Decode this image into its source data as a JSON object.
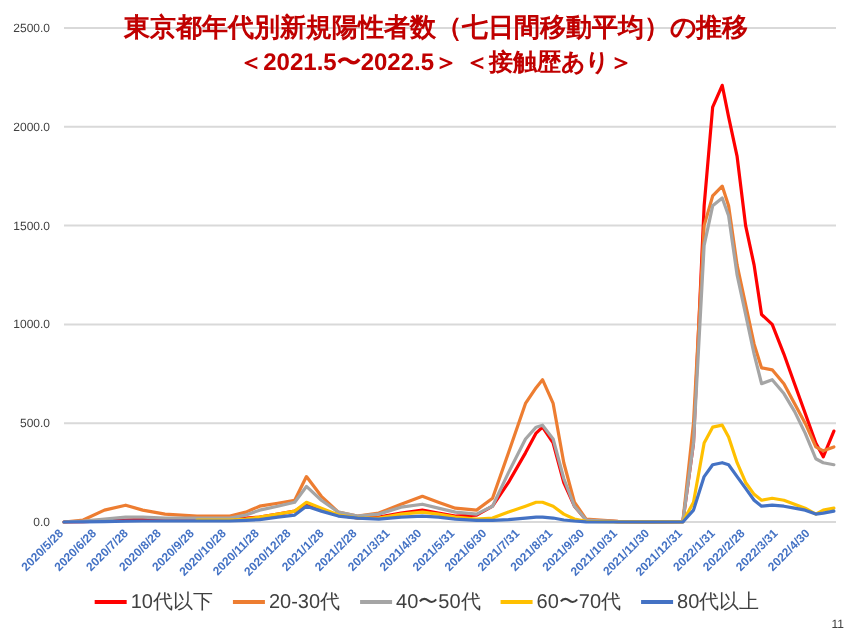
{
  "chart_data": {
    "type": "line",
    "title": "東京都年代別新規陽性者数（七日間移動平均）の推移",
    "subtitle": "＜2021.5〜2022.5＞ ＜接触歴あり＞",
    "annotations": [
      "11"
    ],
    "x": [
      "2020-05-28",
      "2020-06-15",
      "2020-07-05",
      "2020-07-25",
      "2020-08-10",
      "2020-08-31",
      "2020-09-30",
      "2020-10-31",
      "2020-11-15",
      "2020-11-28",
      "2020-12-15",
      "2020-12-31",
      "2021-01-11",
      "2021-01-25",
      "2021-02-10",
      "2021-02-28",
      "2021-03-20",
      "2021-04-10",
      "2021-04-30",
      "2021-05-15",
      "2021-05-31",
      "2021-06-20",
      "2021-07-05",
      "2021-07-20",
      "2021-08-05",
      "2021-08-15",
      "2021-08-21",
      "2021-08-31",
      "2021-09-10",
      "2021-09-20",
      "2021-10-01",
      "2021-10-31",
      "2021-11-30",
      "2021-12-31",
      "2022-01-10",
      "2022-01-20",
      "2022-01-28",
      "2022-02-06",
      "2022-02-12",
      "2022-02-20",
      "2022-02-28",
      "2022-03-08",
      "2022-03-15",
      "2022-03-25",
      "2022-04-05",
      "2022-04-15",
      "2022-04-25",
      "2022-05-05",
      "2022-05-12",
      "2022-05-22"
    ],
    "series": [
      {
        "name": "10代以下",
        "color": "#ff0000",
        "values": [
          0,
          2,
          5,
          10,
          15,
          15,
          15,
          15,
          20,
          25,
          40,
          55,
          90,
          60,
          35,
          20,
          25,
          45,
          60,
          45,
          30,
          35,
          80,
          200,
          350,
          450,
          480,
          400,
          200,
          80,
          10,
          2,
          1,
          2,
          400,
          1600,
          2100,
          2210,
          2050,
          1850,
          1500,
          1300,
          1050,
          1000,
          850,
          700,
          550,
          400,
          330,
          460
        ]
      },
      {
        "name": "20-30代",
        "color": "#ed7d31",
        "values": [
          0,
          10,
          60,
          85,
          60,
          40,
          30,
          30,
          50,
          80,
          95,
          110,
          230,
          130,
          50,
          30,
          45,
          90,
          130,
          100,
          70,
          60,
          120,
          350,
          600,
          680,
          720,
          600,
          300,
          100,
          15,
          3,
          2,
          3,
          500,
          1500,
          1650,
          1700,
          1600,
          1300,
          1100,
          900,
          780,
          770,
          700,
          600,
          500,
          380,
          360,
          380
        ]
      },
      {
        "name": "40〜50代",
        "color": "#a5a5a5",
        "values": [
          0,
          5,
          15,
          25,
          25,
          20,
          20,
          20,
          35,
          60,
          80,
          100,
          180,
          110,
          50,
          30,
          40,
          75,
          90,
          70,
          50,
          40,
          80,
          250,
          420,
          480,
          490,
          420,
          220,
          80,
          10,
          2,
          1,
          2,
          400,
          1400,
          1600,
          1640,
          1550,
          1250,
          1050,
          850,
          700,
          720,
          650,
          560,
          450,
          320,
          300,
          290
        ]
      },
      {
        "name": "60〜70代",
        "color": "#ffc000",
        "values": [
          null,
          null,
          null,
          null,
          null,
          null,
          10,
          10,
          15,
          25,
          40,
          55,
          100,
          70,
          35,
          20,
          20,
          40,
          50,
          40,
          25,
          15,
          20,
          50,
          80,
          100,
          100,
          80,
          40,
          15,
          3,
          1,
          1,
          1,
          100,
          400,
          480,
          490,
          430,
          300,
          200,
          140,
          110,
          120,
          110,
          90,
          70,
          40,
          60,
          70
        ]
      },
      {
        "name": "80代以上",
        "color": "#4472c4",
        "values": [
          0,
          1,
          2,
          4,
          5,
          5,
          5,
          5,
          8,
          12,
          25,
          35,
          80,
          55,
          30,
          20,
          15,
          25,
          30,
          25,
          15,
          8,
          8,
          12,
          20,
          25,
          25,
          20,
          10,
          5,
          1,
          0,
          0,
          0,
          60,
          230,
          290,
          300,
          290,
          230,
          170,
          110,
          80,
          85,
          80,
          70,
          60,
          40,
          45,
          55
        ]
      }
    ],
    "xlim": [
      "2020-05-28",
      "2022-05-24"
    ],
    "xticks": [
      {
        "value": "2020-05-28",
        "label": "2020/5/28"
      },
      {
        "value": "2020-06-28",
        "label": "2020/6/28"
      },
      {
        "value": "2020-07-28",
        "label": "2020/7/28"
      },
      {
        "value": "2020-08-28",
        "label": "2020/8/28"
      },
      {
        "value": "2020-09-28",
        "label": "2020/9/28"
      },
      {
        "value": "2020-10-28",
        "label": "2020/10/28"
      },
      {
        "value": "2020-11-28",
        "label": "2020/11/28"
      },
      {
        "value": "2020-12-28",
        "label": "2020/12/28"
      },
      {
        "value": "2021-01-28",
        "label": "2021/1/28"
      },
      {
        "value": "2021-02-28",
        "label": "2021/2/28"
      },
      {
        "value": "2021-03-31",
        "label": "2021/3/31"
      },
      {
        "value": "2021-04-30",
        "label": "2021/4/30"
      },
      {
        "value": "2021-05-31",
        "label": "2021/5/31"
      },
      {
        "value": "2021-06-30",
        "label": "2021/6/30"
      },
      {
        "value": "2021-07-31",
        "label": "2021/7/31"
      },
      {
        "value": "2021-08-31",
        "label": "2021/8/31"
      },
      {
        "value": "2021-09-30",
        "label": "2021/9/30"
      },
      {
        "value": "2021-10-31",
        "label": "2021/10/31"
      },
      {
        "value": "2021-11-30",
        "label": "2021/11/30"
      },
      {
        "value": "2021-12-31",
        "label": "2021/12/31"
      },
      {
        "value": "2022-01-31",
        "label": "2022/1/31"
      },
      {
        "value": "2022-02-28",
        "label": "2022/2/28"
      },
      {
        "value": "2022-03-31",
        "label": "2022/3/31"
      },
      {
        "value": "2022-04-30",
        "label": "2022/4/30"
      }
    ],
    "ylim": [
      0,
      2500
    ],
    "yticks": [
      {
        "value": 0,
        "label": "0.0"
      },
      {
        "value": 500,
        "label": "500.0"
      },
      {
        "value": 1000,
        "label": "1000.0"
      },
      {
        "value": 1500,
        "label": "1500.0"
      },
      {
        "value": 2000,
        "label": "2000.0"
      },
      {
        "value": 2500,
        "label": "2500.0"
      }
    ],
    "grid": "y",
    "legend": "bottom",
    "marker": "none",
    "line_style": "solid"
  }
}
